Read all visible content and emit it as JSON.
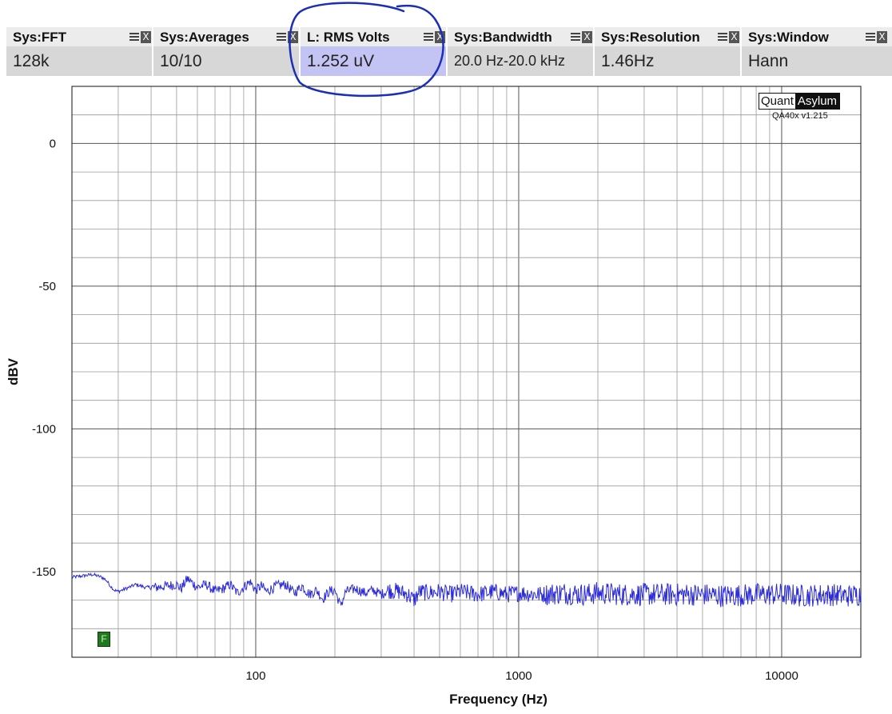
{
  "widgets": [
    {
      "title": "Sys:FFT",
      "value": "128k"
    },
    {
      "title": "Sys:Averages",
      "value": "10/10"
    },
    {
      "title": "L: RMS Volts",
      "value": "1.252 uV"
    },
    {
      "title": "Sys:Bandwidth",
      "value": "20.0 Hz-20.0 kHz"
    },
    {
      "title": "Sys:Resolution",
      "value": "1.46Hz"
    },
    {
      "title": "Sys:Window",
      "value": "Hann"
    }
  ],
  "close_glyph": "X",
  "brand": {
    "part1": "Quant",
    "part2": "Asylum",
    "version": "QA40x v1.215"
  },
  "marker_label": "F",
  "colors": {
    "trace": "#2b2bd9",
    "highlight": "#c4c4f4",
    "annotation": "#1a2fb8",
    "grid": "#7a7a7a"
  },
  "chart_data": {
    "type": "line",
    "xlabel": "Frequency (Hz)",
    "ylabel": "dBV",
    "xscale": "log",
    "xlim": [
      20,
      20000
    ],
    "ylim": [
      -180,
      20
    ],
    "xticks": [
      100,
      1000,
      10000
    ],
    "xtick_labels": [
      "100",
      "1000",
      "10000"
    ],
    "yticks": [
      0,
      -50,
      -100,
      -150
    ],
    "ytick_labels": [
      "0",
      "-50",
      "-100",
      "-150"
    ],
    "grid": true,
    "series": [
      {
        "x": [
          20,
          22,
          24,
          26,
          27,
          28,
          29,
          30,
          32,
          35,
          38,
          42,
          46,
          50,
          52,
          55,
          60,
          65,
          70,
          75,
          80,
          85,
          90,
          95,
          100,
          105,
          110,
          120,
          130,
          140,
          150,
          160,
          170,
          180,
          190,
          200,
          210,
          220,
          240,
          260,
          280,
          300,
          320,
          350,
          380,
          400,
          420,
          450,
          500,
          550,
          600,
          700,
          800,
          900,
          1000,
          1200,
          1500,
          1800,
          2000,
          2500,
          3000,
          4000,
          5000,
          6000,
          8000,
          10000,
          12000,
          15000,
          18000,
          20000
        ],
        "y": [
          -152,
          -151.5,
          -151,
          -152,
          -153,
          -155,
          -156.5,
          -157,
          -156,
          -154.5,
          -155.5,
          -155.5,
          -155,
          -154.5,
          -156,
          -152.5,
          -155.5,
          -154.5,
          -157,
          -156,
          -154.5,
          -157.5,
          -155.5,
          -153.5,
          -156.5,
          -155,
          -157,
          -155,
          -154.5,
          -157.5,
          -155,
          -158,
          -156.5,
          -159.5,
          -157,
          -156.5,
          -162,
          -157,
          -156,
          -157.5,
          -156.5,
          -158,
          -156.5,
          -157,
          -158,
          -160,
          -157,
          -157.5,
          -157,
          -158,
          -157,
          -158,
          -157,
          -158,
          -157.5,
          -158,
          -157.5,
          -158,
          -157.5,
          -158,
          -158,
          -158,
          -158,
          -158.5,
          -158,
          -158,
          -158.5,
          -158,
          -158.5,
          -158
        ]
      }
    ],
    "annotations": [
      {
        "type": "marker",
        "text": "F",
        "x": 26,
        "y": -172
      }
    ]
  }
}
